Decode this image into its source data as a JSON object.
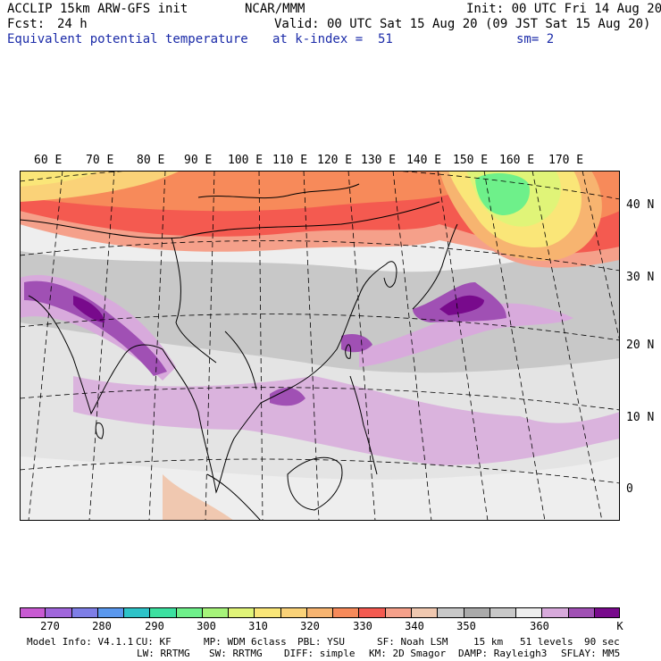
{
  "header": {
    "model": "ACCLIP 15km ARW-GFS init",
    "org": "NCAR/MMM",
    "init": "Init: 00 UTC Fri 14 Aug 20",
    "fcst_label": "Fcst:",
    "fcst_value": "24 h",
    "valid": "Valid: 00 UTC Sat 15 Aug 20 (09 JST Sat 15 Aug 20)",
    "field": "Equivalent potential temperature",
    "level": "at k-index =  51",
    "smooth": "sm= 2"
  },
  "map": {
    "lon_labels": [
      "60 E",
      "70 E",
      "80 E",
      "90 E",
      "100 E",
      "110 E",
      "120 E",
      "130 E",
      "140 E",
      "150 E",
      "160 E",
      "170 E"
    ],
    "lat_labels": [
      "40 N",
      "30 N",
      "20 N",
      "10 N",
      "0"
    ]
  },
  "colorbar": {
    "colors": [
      "#c85ad2",
      "#a066dc",
      "#7e7ee6",
      "#5a98ee",
      "#2ec3c8",
      "#3ce0a0",
      "#6ef08a",
      "#a6f47a",
      "#e0f478",
      "#fae678",
      "#fad278",
      "#f7b470",
      "#f78a5a",
      "#f45a50",
      "#f5a08a",
      "#f0c8b0",
      "#c8c8c8",
      "#aaaaaa",
      "#c8c8c8",
      "#eeeeee",
      "#d8aadc",
      "#a050b4",
      "#780a8c"
    ],
    "ticks": [
      "270",
      "280",
      "290",
      "300",
      "310",
      "320",
      "330",
      "340",
      "350",
      "360"
    ],
    "unit": "K"
  },
  "footer": {
    "line1": [
      "Model Info: V4.1.1",
      "CU: KF",
      "MP: WDM 6class",
      "PBL: YSU",
      "SF: Noah LSM",
      "15 km",
      "51 levels",
      "90 sec"
    ],
    "line2": [
      "LW: RRTMG",
      "SW: RRTMG",
      "DIFF: simple",
      "KM: 2D Smagor",
      "DAMP: Rayleigh3",
      "SFLAY: MM5"
    ]
  },
  "colors": {
    "warm_band": "#f45a50",
    "orange": "#f78a5a",
    "salmon": "#f5a08a",
    "yellow": "#fae678",
    "green": "#6ef08a",
    "grey": "#c8c8c8",
    "light_grey": "#eeeeee",
    "light_purple": "#d8aadc",
    "purple": "#a050b4",
    "dark_purple": "#780a8c",
    "label_blue": "#1a2aa8"
  }
}
